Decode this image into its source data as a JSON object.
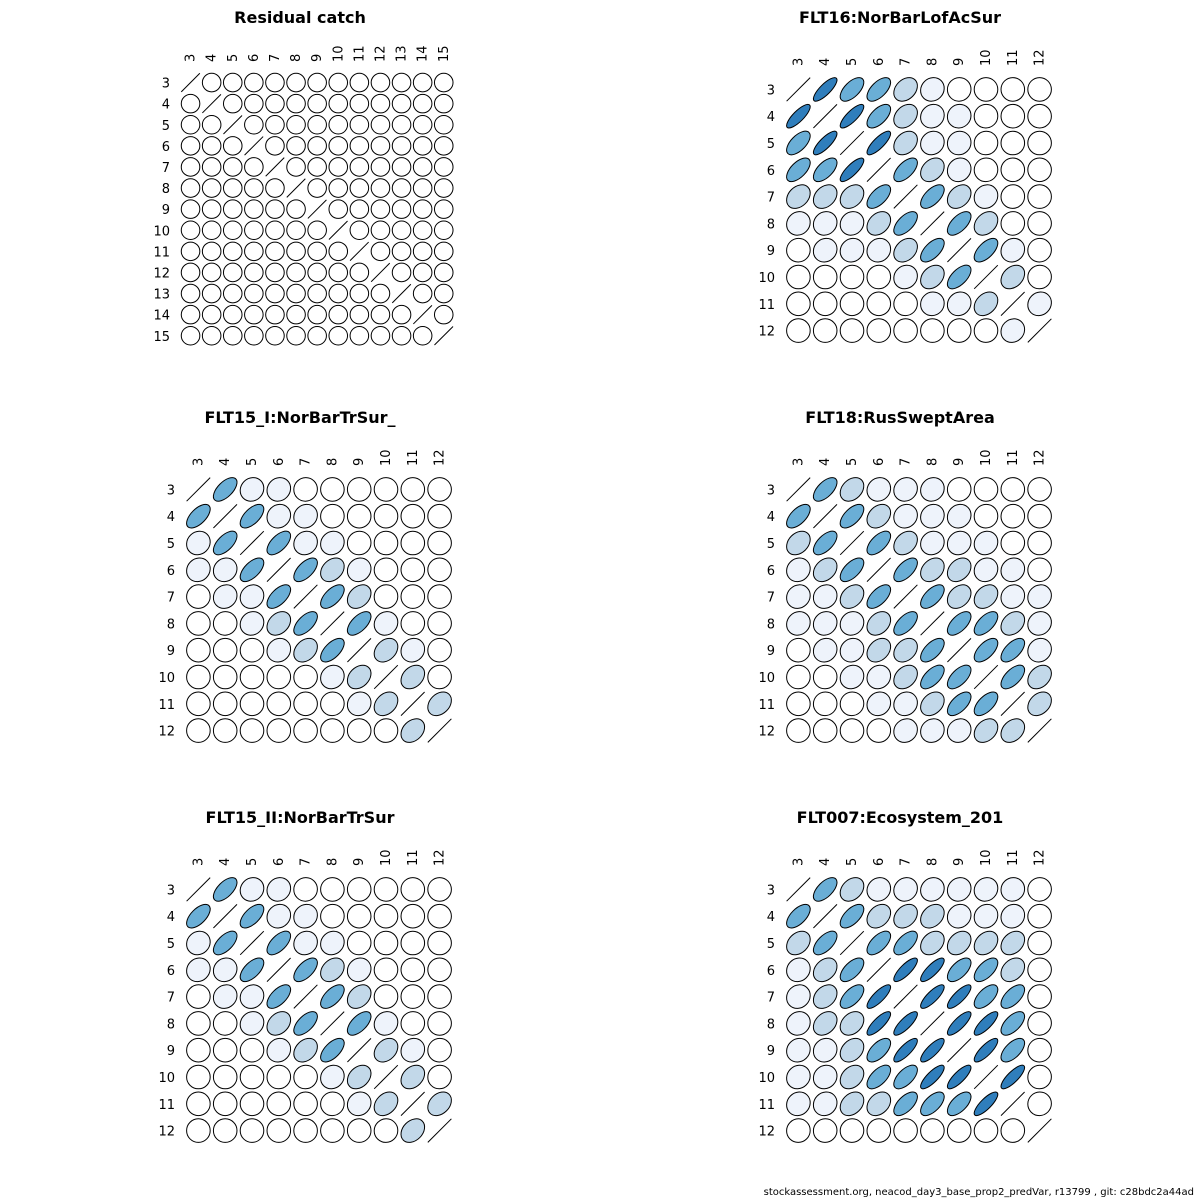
{
  "footer": "stockassessment.org, neacod_day3_base_prop2_predVar, r13799 , git: c28bdc2a44ad",
  "chart_data": [
    {
      "type": "heatmap",
      "title": "Residual catch",
      "ages": [
        "3",
        "4",
        "5",
        "6",
        "7",
        "8",
        "9",
        "10",
        "11",
        "12",
        "13",
        "14",
        "15"
      ],
      "correlations": [
        [
          1,
          0,
          0,
          0,
          0,
          0,
          0,
          0,
          0,
          0,
          0,
          0,
          0
        ],
        [
          0,
          1,
          0,
          0,
          0,
          0,
          0,
          0,
          0,
          0,
          0,
          0,
          0
        ],
        [
          0,
          0,
          1,
          0,
          0,
          0,
          0,
          0,
          0,
          0,
          0,
          0,
          0
        ],
        [
          0,
          0,
          0,
          1,
          0,
          0,
          0,
          0,
          0,
          0,
          0,
          0,
          0
        ],
        [
          0,
          0,
          0,
          0,
          1,
          0,
          0,
          0,
          0,
          0,
          0,
          0,
          0
        ],
        [
          0,
          0,
          0,
          0,
          0,
          1,
          0,
          0,
          0,
          0,
          0,
          0,
          0
        ],
        [
          0,
          0,
          0,
          0,
          0,
          0,
          1,
          0,
          0,
          0,
          0,
          0,
          0
        ],
        [
          0,
          0,
          0,
          0,
          0,
          0,
          0,
          1,
          0,
          0,
          0,
          0,
          0
        ],
        [
          0,
          0,
          0,
          0,
          0,
          0,
          0,
          0,
          1,
          0,
          0,
          0,
          0
        ],
        [
          0,
          0,
          0,
          0,
          0,
          0,
          0,
          0,
          0,
          1,
          0,
          0,
          0
        ],
        [
          0,
          0,
          0,
          0,
          0,
          0,
          0,
          0,
          0,
          0,
          1,
          0,
          0
        ],
        [
          0,
          0,
          0,
          0,
          0,
          0,
          0,
          0,
          0,
          0,
          0,
          1,
          0
        ],
        [
          0,
          0,
          0,
          0,
          0,
          0,
          0,
          0,
          0,
          0,
          0,
          0,
          1
        ]
      ]
    },
    {
      "type": "heatmap",
      "title": "FLT16:NorBarLofAcSur",
      "ages": [
        "3",
        "4",
        "5",
        "6",
        "7",
        "8",
        "9",
        "10",
        "11",
        "12"
      ],
      "correlations": [
        [
          1,
          0.8,
          0.6,
          0.6,
          0.3,
          0.1,
          0.02,
          0,
          0,
          0
        ],
        [
          0.8,
          1,
          0.8,
          0.6,
          0.3,
          0.1,
          0.05,
          0.02,
          0,
          0
        ],
        [
          0.6,
          0.8,
          1,
          0.8,
          0.3,
          0.1,
          0.05,
          0.02,
          0,
          0
        ],
        [
          0.6,
          0.6,
          0.8,
          1,
          0.6,
          0.3,
          0.1,
          0.02,
          0,
          0
        ],
        [
          0.3,
          0.3,
          0.3,
          0.6,
          1,
          0.6,
          0.3,
          0.1,
          0.02,
          0
        ],
        [
          0.1,
          0.1,
          0.1,
          0.3,
          0.6,
          1,
          0.6,
          0.3,
          0.02,
          0
        ],
        [
          0.02,
          0.1,
          0.1,
          0.1,
          0.3,
          0.6,
          1,
          0.6,
          0.1,
          0.02
        ],
        [
          0,
          0,
          0.02,
          0.02,
          0.1,
          0.3,
          0.6,
          1,
          0.3,
          0.02
        ],
        [
          0,
          0,
          0,
          0,
          0.02,
          0.05,
          0.1,
          0.3,
          1,
          0.1
        ],
        [
          0,
          0,
          0,
          0,
          0,
          0,
          0.02,
          0.02,
          0.1,
          1
        ]
      ]
    },
    {
      "type": "heatmap",
      "title": "FLT15_I:NorBarTrSur_",
      "ages": [
        "3",
        "4",
        "5",
        "6",
        "7",
        "8",
        "9",
        "10",
        "11",
        "12"
      ],
      "correlations": [
        [
          1,
          0.6,
          0.1,
          0.1,
          0.02,
          0,
          0,
          0,
          0,
          0
        ],
        [
          0.6,
          1,
          0.6,
          0.1,
          0.1,
          0.02,
          0,
          0,
          0,
          0
        ],
        [
          0.1,
          0.6,
          1,
          0.6,
          0.1,
          0.1,
          0.02,
          0,
          0,
          0
        ],
        [
          0.1,
          0.1,
          0.6,
          1,
          0.6,
          0.3,
          0.1,
          0.02,
          0,
          0
        ],
        [
          0.02,
          0.1,
          0.1,
          0.6,
          1,
          0.6,
          0.3,
          0.02,
          0,
          0
        ],
        [
          0,
          0.02,
          0.1,
          0.3,
          0.6,
          1,
          0.6,
          0.1,
          0.02,
          0
        ],
        [
          0,
          0,
          0.02,
          0.1,
          0.3,
          0.6,
          1,
          0.3,
          0.1,
          0.02
        ],
        [
          0,
          0,
          0,
          0.02,
          0.02,
          0.1,
          0.3,
          1,
          0.3,
          0.02
        ],
        [
          0,
          0,
          0,
          0,
          0,
          0.02,
          0.1,
          0.3,
          1,
          0.3
        ],
        [
          0,
          0,
          0,
          0,
          0,
          0,
          0,
          0.02,
          0.3,
          1
        ]
      ]
    },
    {
      "type": "heatmap",
      "title": "FLT18:RusSweptArea",
      "ages": [
        "3",
        "4",
        "5",
        "6",
        "7",
        "8",
        "9",
        "10",
        "11",
        "12"
      ],
      "correlations": [
        [
          1,
          0.6,
          0.3,
          0.1,
          0.1,
          0.1,
          0.02,
          0,
          0,
          0
        ],
        [
          0.6,
          1,
          0.6,
          0.3,
          0.1,
          0.1,
          0.1,
          0.02,
          0.02,
          0
        ],
        [
          0.3,
          0.6,
          1,
          0.6,
          0.3,
          0.1,
          0.1,
          0.1,
          0.02,
          0
        ],
        [
          0.1,
          0.3,
          0.6,
          1,
          0.6,
          0.3,
          0.3,
          0.1,
          0.1,
          0.02
        ],
        [
          0.1,
          0.1,
          0.3,
          0.6,
          1,
          0.6,
          0.3,
          0.3,
          0.1,
          0.1
        ],
        [
          0.1,
          0.1,
          0.1,
          0.3,
          0.6,
          1,
          0.6,
          0.6,
          0.3,
          0.1
        ],
        [
          0.02,
          0.1,
          0.1,
          0.3,
          0.3,
          0.6,
          1,
          0.6,
          0.6,
          0.1
        ],
        [
          0.02,
          0.02,
          0.1,
          0.1,
          0.3,
          0.6,
          0.6,
          1,
          0.6,
          0.3
        ],
        [
          0,
          0.02,
          0.02,
          0.1,
          0.1,
          0.3,
          0.6,
          0.6,
          1,
          0.3
        ],
        [
          0,
          0,
          0,
          0.02,
          0.1,
          0.1,
          0.1,
          0.3,
          0.3,
          1
        ]
      ]
    },
    {
      "type": "heatmap",
      "title": "FLT15_II:NorBarTrSur",
      "ages": [
        "3",
        "4",
        "5",
        "6",
        "7",
        "8",
        "9",
        "10",
        "11",
        "12"
      ],
      "correlations": [
        [
          1,
          0.6,
          0.1,
          0.1,
          0.02,
          0,
          0,
          0,
          0,
          0
        ],
        [
          0.6,
          1,
          0.6,
          0.1,
          0.1,
          0.02,
          0,
          0,
          0,
          0
        ],
        [
          0.1,
          0.6,
          1,
          0.6,
          0.1,
          0.1,
          0.02,
          0,
          0,
          0
        ],
        [
          0.1,
          0.1,
          0.6,
          1,
          0.6,
          0.3,
          0.1,
          0.02,
          0,
          0
        ],
        [
          0.02,
          0.1,
          0.1,
          0.6,
          1,
          0.6,
          0.3,
          0.02,
          0,
          0
        ],
        [
          0,
          0.02,
          0.1,
          0.3,
          0.6,
          1,
          0.6,
          0.1,
          0.02,
          0
        ],
        [
          0,
          0,
          0.02,
          0.1,
          0.3,
          0.6,
          1,
          0.3,
          0.1,
          0.02
        ],
        [
          0,
          0,
          0,
          0.02,
          0.02,
          0.1,
          0.3,
          1,
          0.3,
          0.02
        ],
        [
          0,
          0,
          0,
          0,
          0,
          0.02,
          0.1,
          0.3,
          1,
          0.3
        ],
        [
          0,
          0,
          0,
          0,
          0,
          0,
          0,
          0.02,
          0.3,
          1
        ]
      ]
    },
    {
      "type": "heatmap",
      "title": "FLT007:Ecosystem_201",
      "ages": [
        "3",
        "4",
        "5",
        "6",
        "7",
        "8",
        "9",
        "10",
        "11",
        "12"
      ],
      "correlations": [
        [
          1,
          0.6,
          0.3,
          0.1,
          0.1,
          0.1,
          0.1,
          0.1,
          0.05,
          0.02
        ],
        [
          0.6,
          1,
          0.6,
          0.3,
          0.3,
          0.3,
          0.1,
          0.1,
          0.1,
          0.02
        ],
        [
          0.3,
          0.6,
          1,
          0.6,
          0.6,
          0.3,
          0.3,
          0.3,
          0.3,
          0.02
        ],
        [
          0.1,
          0.3,
          0.6,
          1,
          0.8,
          0.8,
          0.6,
          0.6,
          0.3,
          0.02
        ],
        [
          0.1,
          0.3,
          0.6,
          0.8,
          1,
          0.8,
          0.8,
          0.6,
          0.6,
          0.02
        ],
        [
          0.1,
          0.3,
          0.3,
          0.8,
          0.8,
          1,
          0.8,
          0.8,
          0.6,
          0.02
        ],
        [
          0.1,
          0.1,
          0.3,
          0.6,
          0.8,
          0.8,
          1,
          0.8,
          0.6,
          0.02
        ],
        [
          0.1,
          0.1,
          0.3,
          0.6,
          0.6,
          0.8,
          0.8,
          1,
          0.8,
          0.02
        ],
        [
          0.1,
          0.1,
          0.3,
          0.3,
          0.6,
          0.6,
          0.6,
          0.8,
          1,
          0.02
        ],
        [
          0.02,
          0.02,
          0.02,
          0.02,
          0.02,
          0.02,
          0.02,
          0.02,
          0.02,
          1
        ]
      ]
    }
  ]
}
